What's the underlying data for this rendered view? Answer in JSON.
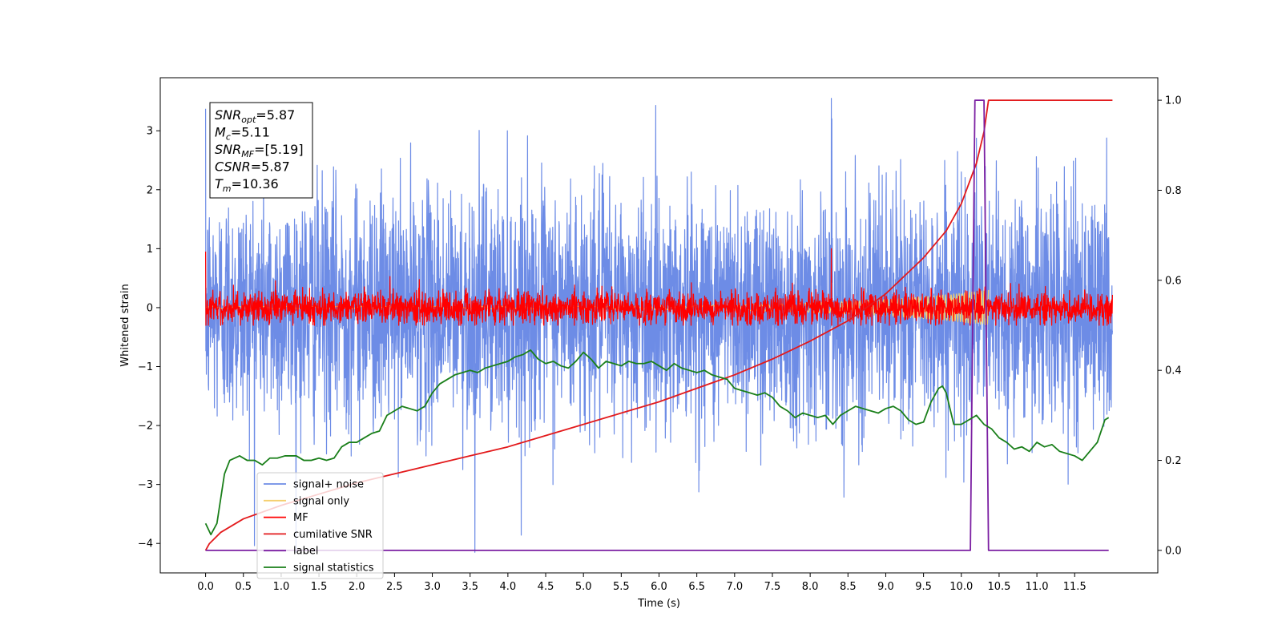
{
  "chart_data": {
    "type": "line",
    "xlabel": "Time (s)",
    "ylabel_left": "Whitened strain",
    "ylabel_right": "",
    "xlim": [
      -0.6,
      12.6
    ],
    "ylim_left": [
      -4.5,
      3.9
    ],
    "ylim_right": [
      -0.05,
      1.05
    ],
    "x_ticks": [
      0.0,
      0.5,
      1.0,
      1.5,
      2.0,
      2.5,
      3.0,
      3.5,
      4.0,
      4.5,
      5.0,
      5.5,
      6.0,
      6.5,
      7.0,
      7.5,
      8.0,
      8.5,
      9.0,
      9.5,
      10.0,
      10.5,
      11.0,
      11.5
    ],
    "x_tick_labels": [
      "0.0",
      "0.5",
      "1.0",
      "1.5",
      "2.0",
      "2.5",
      "3.0",
      "3.5",
      "4.0",
      "4.5",
      "5.0",
      "5.5",
      "6.0",
      "6.5",
      "7.0",
      "7.5",
      "8.0",
      "8.5",
      "9.0",
      "9.5",
      "10.0",
      "10.5",
      "11.0",
      "11.5"
    ],
    "y_ticks_left": [
      -4,
      -3,
      -2,
      -1,
      0,
      1,
      2,
      3
    ],
    "y_tick_labels_left": [
      "−4",
      "−3",
      "−2",
      "−1",
      "0",
      "1",
      "2",
      "3"
    ],
    "y_ticks_right": [
      0.0,
      0.2,
      0.4,
      0.6,
      0.8,
      1.0
    ],
    "y_tick_labels_right": [
      "0.0",
      "0.2",
      "0.4",
      "0.6",
      "0.8",
      "1.0"
    ],
    "grid": false,
    "legend_position": "bottom-left",
    "series": [
      {
        "name": "signal+ noise",
        "axis": "left",
        "color": "#6d8ce6",
        "kind": "noise",
        "x_range": [
          0,
          12
        ],
        "std": 1.0,
        "peak_min": -4.15,
        "peak_max": 3.55
      },
      {
        "name": "signal only",
        "axis": "left",
        "color": "#f5cf6e",
        "kind": "chirp",
        "x_range": [
          0,
          10.36
        ],
        "amplitude_start": 0.02,
        "amplitude_end": 0.3
      },
      {
        "name": "MF",
        "axis": "left",
        "color": "#ff0000",
        "kind": "noise",
        "x_range": [
          0,
          12
        ],
        "std": 0.14,
        "peak_min": -0.3,
        "peak_max": 1.0
      },
      {
        "name": "cumilative SNR",
        "axis": "right",
        "color": "#e31a1c",
        "x": [
          0.0,
          0.05,
          0.2,
          0.5,
          1.0,
          1.5,
          2.0,
          2.5,
          3.0,
          3.5,
          4.0,
          4.5,
          5.0,
          5.5,
          6.0,
          6.5,
          7.0,
          7.5,
          8.0,
          8.5,
          9.0,
          9.5,
          9.8,
          10.0,
          10.2,
          10.3,
          10.36,
          10.5,
          11.0,
          11.5,
          12.0
        ],
        "values": [
          0.0,
          0.015,
          0.04,
          0.07,
          0.1,
          0.125,
          0.15,
          0.17,
          0.19,
          0.21,
          0.23,
          0.255,
          0.28,
          0.305,
          0.33,
          0.36,
          0.39,
          0.425,
          0.465,
          0.51,
          0.57,
          0.65,
          0.71,
          0.77,
          0.86,
          0.93,
          1.0,
          1.0,
          1.0,
          1.0,
          1.0
        ]
      },
      {
        "name": "label",
        "axis": "right",
        "color": "#7b1fa2",
        "x": [
          0.0,
          10.12,
          10.18,
          10.3,
          10.36,
          11.0,
          11.5,
          11.95
        ],
        "values": [
          0.0,
          0.0,
          1.0,
          1.0,
          0.0,
          0.0,
          0.0,
          0.0
        ]
      },
      {
        "name": "signal statistics",
        "axis": "right",
        "color": "#1a7f1a",
        "x": [
          0.0,
          0.07,
          0.15,
          0.25,
          0.32,
          0.45,
          0.55,
          0.65,
          0.75,
          0.85,
          0.95,
          1.05,
          1.2,
          1.3,
          1.4,
          1.5,
          1.6,
          1.7,
          1.8,
          1.9,
          2.0,
          2.1,
          2.2,
          2.3,
          2.4,
          2.5,
          2.6,
          2.7,
          2.8,
          2.9,
          3.0,
          3.1,
          3.2,
          3.3,
          3.4,
          3.5,
          3.6,
          3.7,
          3.8,
          3.9,
          4.0,
          4.1,
          4.2,
          4.3,
          4.4,
          4.5,
          4.6,
          4.7,
          4.8,
          4.9,
          5.0,
          5.1,
          5.2,
          5.3,
          5.4,
          5.5,
          5.6,
          5.7,
          5.8,
          5.9,
          6.0,
          6.1,
          6.2,
          6.3,
          6.4,
          6.5,
          6.6,
          6.7,
          6.8,
          6.9,
          7.0,
          7.1,
          7.2,
          7.3,
          7.4,
          7.5,
          7.6,
          7.7,
          7.8,
          7.9,
          8.0,
          8.1,
          8.2,
          8.3,
          8.4,
          8.5,
          8.6,
          8.7,
          8.8,
          8.9,
          9.0,
          9.1,
          9.2,
          9.3,
          9.4,
          9.5,
          9.6,
          9.7,
          9.75,
          9.8,
          9.9,
          10.0,
          10.1,
          10.2,
          10.3,
          10.4,
          10.5,
          10.6,
          10.7,
          10.8,
          10.9,
          11.0,
          11.1,
          11.2,
          11.3,
          11.4,
          11.5,
          11.6,
          11.7,
          11.8,
          11.9,
          11.95
        ],
        "values": [
          0.06,
          0.035,
          0.06,
          0.17,
          0.2,
          0.21,
          0.2,
          0.2,
          0.19,
          0.205,
          0.205,
          0.21,
          0.21,
          0.2,
          0.2,
          0.205,
          0.2,
          0.205,
          0.23,
          0.24,
          0.24,
          0.25,
          0.26,
          0.265,
          0.3,
          0.31,
          0.32,
          0.315,
          0.31,
          0.32,
          0.35,
          0.37,
          0.38,
          0.39,
          0.395,
          0.4,
          0.395,
          0.405,
          0.41,
          0.415,
          0.42,
          0.43,
          0.435,
          0.445,
          0.425,
          0.415,
          0.42,
          0.41,
          0.405,
          0.42,
          0.44,
          0.425,
          0.405,
          0.42,
          0.415,
          0.41,
          0.42,
          0.415,
          0.415,
          0.42,
          0.41,
          0.4,
          0.415,
          0.405,
          0.4,
          0.395,
          0.4,
          0.39,
          0.385,
          0.38,
          0.36,
          0.355,
          0.35,
          0.345,
          0.35,
          0.34,
          0.32,
          0.31,
          0.295,
          0.305,
          0.3,
          0.295,
          0.3,
          0.28,
          0.3,
          0.31,
          0.32,
          0.315,
          0.31,
          0.305,
          0.315,
          0.32,
          0.31,
          0.29,
          0.28,
          0.285,
          0.33,
          0.36,
          0.365,
          0.35,
          0.28,
          0.28,
          0.29,
          0.3,
          0.28,
          0.27,
          0.25,
          0.24,
          0.225,
          0.23,
          0.22,
          0.24,
          0.23,
          0.235,
          0.22,
          0.215,
          0.21,
          0.2,
          0.22,
          0.24,
          0.29,
          0.295
        ]
      }
    ],
    "stats_box": [
      {
        "sym": "SNR",
        "sub": "opt",
        "val": "=5.87"
      },
      {
        "sym": "M",
        "sub": "c",
        "val": "=5.11"
      },
      {
        "sym": "SNR",
        "sub": "MF",
        "val": "=[5.19]"
      },
      {
        "sym": "CSNR",
        "sub": "",
        "val": "=5.87"
      },
      {
        "sym": "T",
        "sub": "m",
        "val": "=10.36"
      }
    ]
  }
}
